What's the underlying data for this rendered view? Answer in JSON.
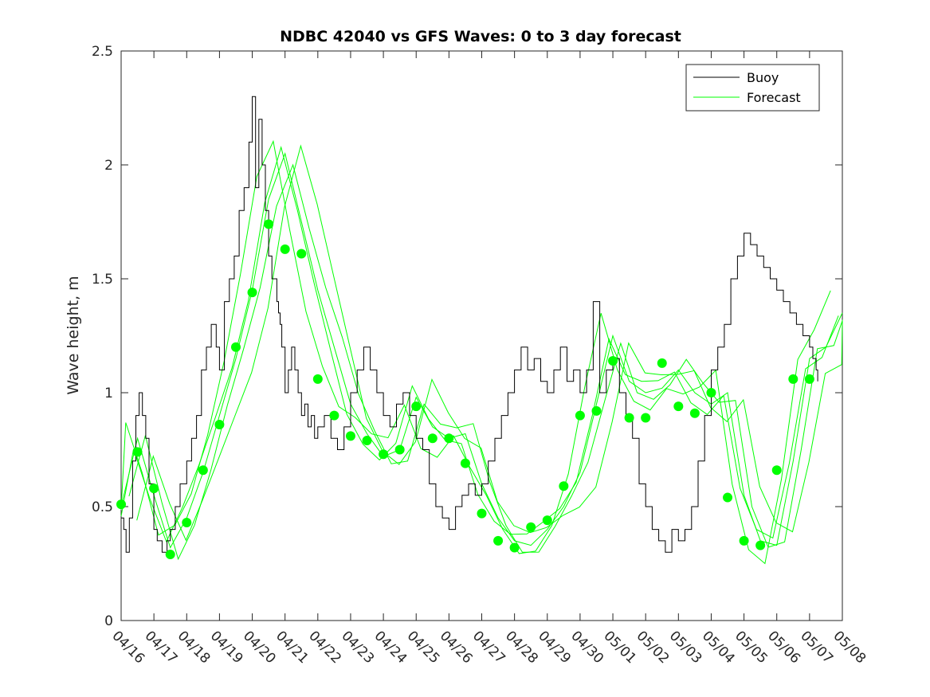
{
  "chart_data": {
    "type": "line",
    "title": "NDBC 42040 vs GFS Waves: 0 to 3 day forecast",
    "xlabel": "",
    "ylabel": "Wave height, m",
    "x_tick_labels": [
      "04/16",
      "04/17",
      "04/18",
      "04/19",
      "04/20",
      "04/21",
      "04/22",
      "04/23",
      "04/24",
      "04/25",
      "04/26",
      "04/27",
      "04/28",
      "04/29",
      "04/30",
      "05/01",
      "05/02",
      "05/03",
      "05/04",
      "05/05",
      "05/06",
      "05/07",
      "05/08"
    ],
    "y_tick_labels": [
      "0",
      "0.5",
      "1",
      "1.5",
      "2",
      "2.5"
    ],
    "xlim_days": [
      0,
      22
    ],
    "ylim": [
      0,
      2.5
    ],
    "grid": false,
    "legend_position": "top-right",
    "colors": {
      "buoy": "#000000",
      "forecast": "#00ff00",
      "axes": "#262626"
    },
    "series": [
      {
        "name": "Buoy",
        "x_days": [
          0,
          0.08,
          0.15,
          0.25,
          0.35,
          0.45,
          0.55,
          0.65,
          0.75,
          0.85,
          1.0,
          1.1,
          1.25,
          1.4,
          1.5,
          1.65,
          1.8,
          2.0,
          2.15,
          2.3,
          2.45,
          2.6,
          2.75,
          2.9,
          3.0,
          3.15,
          3.3,
          3.45,
          3.6,
          3.75,
          3.9,
          4.0,
          4.1,
          4.2,
          4.3,
          4.4,
          4.5,
          4.6,
          4.7,
          4.75,
          4.8,
          4.85,
          4.9,
          5.0,
          5.1,
          5.2,
          5.3,
          5.4,
          5.5,
          5.6,
          5.7,
          5.8,
          5.9,
          6.0,
          6.2,
          6.4,
          6.6,
          6.8,
          7.0,
          7.2,
          7.4,
          7.6,
          7.8,
          8.0,
          8.2,
          8.4,
          8.6,
          8.8,
          9.0,
          9.2,
          9.4,
          9.6,
          9.8,
          10.0,
          10.2,
          10.4,
          10.6,
          10.8,
          11.0,
          11.2,
          11.4,
          11.6,
          11.8,
          12.0,
          12.2,
          12.4,
          12.6,
          12.8,
          13.0,
          13.2,
          13.4,
          13.6,
          13.8,
          14.0,
          14.2,
          14.4,
          14.6,
          14.8,
          15.0,
          15.2,
          15.4,
          15.6,
          15.8,
          16.0,
          16.2,
          16.4,
          16.6,
          16.8,
          17.0,
          17.2,
          17.4,
          17.6,
          17.8,
          18.0,
          18.2,
          18.4,
          18.6,
          18.8,
          19.0,
          19.2,
          19.4,
          19.6,
          19.8,
          20.0,
          20.2,
          20.4,
          20.6,
          20.8,
          21.0,
          21.1,
          21.2,
          21.25
        ],
        "values": [
          0.45,
          0.4,
          0.3,
          0.45,
          0.7,
          0.9,
          1.0,
          0.9,
          0.8,
          0.6,
          0.4,
          0.35,
          0.3,
          0.35,
          0.4,
          0.5,
          0.6,
          0.7,
          0.8,
          0.9,
          1.1,
          1.2,
          1.3,
          1.2,
          1.1,
          1.4,
          1.5,
          1.6,
          1.8,
          1.9,
          2.1,
          2.3,
          1.9,
          2.2,
          2.0,
          1.8,
          1.6,
          1.5,
          1.5,
          1.4,
          1.35,
          1.3,
          1.2,
          1.0,
          1.1,
          1.2,
          1.1,
          1.0,
          0.9,
          0.95,
          0.85,
          0.9,
          0.8,
          0.85,
          0.9,
          0.8,
          0.75,
          0.85,
          1.0,
          1.1,
          1.2,
          1.1,
          1.0,
          0.9,
          0.85,
          0.95,
          1.0,
          0.9,
          0.8,
          0.75,
          0.6,
          0.5,
          0.45,
          0.4,
          0.5,
          0.55,
          0.6,
          0.55,
          0.6,
          0.7,
          0.8,
          0.9,
          1.0,
          1.1,
          1.2,
          1.1,
          1.15,
          1.05,
          1.0,
          1.1,
          1.2,
          1.05,
          1.1,
          1.0,
          1.1,
          1.4,
          1.0,
          1.1,
          1.15,
          1.0,
          0.9,
          0.8,
          0.6,
          0.5,
          0.4,
          0.35,
          0.3,
          0.4,
          0.35,
          0.4,
          0.5,
          0.7,
          0.9,
          1.1,
          1.2,
          1.3,
          1.5,
          1.6,
          1.7,
          1.65,
          1.6,
          1.55,
          1.5,
          1.45,
          1.4,
          1.35,
          1.3,
          1.25,
          1.2,
          1.15,
          1.1,
          1.05
        ],
        "x_days_trimmed": [],
        "note_unused": ""
      },
      {
        "name": "Forecast",
        "x_days": [
          0,
          0.5,
          1.0,
          1.5,
          2.0,
          2.5,
          3.0,
          3.5,
          4.0,
          4.5,
          5.0,
          5.5,
          6.0,
          6.5,
          7.0,
          7.5,
          8.0,
          8.5,
          9.0,
          9.5,
          10.0,
          10.5,
          11.0,
          11.5,
          12.0,
          12.5,
          13.0,
          13.5,
          14.0,
          14.5,
          15.0,
          15.5,
          16.0,
          16.5,
          17.0,
          17.5,
          18.0,
          18.5,
          19.0,
          19.5,
          20.0,
          20.5,
          21.0,
          21.5,
          22.0
        ],
        "values": [
          0.5,
          0.8,
          0.55,
          0.32,
          0.45,
          0.65,
          0.9,
          1.15,
          1.45,
          1.85,
          2.05,
          1.75,
          1.45,
          1.2,
          0.95,
          0.82,
          0.72,
          0.75,
          0.98,
          0.85,
          0.8,
          0.82,
          0.6,
          0.45,
          0.35,
          0.33,
          0.4,
          0.5,
          0.65,
          0.95,
          1.25,
          1.05,
          1.0,
          1.02,
          1.1,
          1.0,
          0.95,
          1.0,
          0.55,
          0.35,
          0.33,
          0.7,
          1.15,
          1.2,
          1.35
        ]
      }
    ],
    "forecast_ensemble_offsets": [
      0,
      -0.05,
      0.05,
      -0.1,
      0.08
    ],
    "markers": {
      "x_days": [
        0,
        0.5,
        1.0,
        1.5,
        2.0,
        2.5,
        3.0,
        3.5,
        4.0,
        4.5,
        5.0,
        5.5,
        6.0,
        6.5,
        7.0,
        7.5,
        8.0,
        8.5,
        9.0,
        9.5,
        10.0,
        10.5,
        11.0,
        11.5,
        12.0,
        12.5,
        13.0,
        13.5,
        14.0,
        14.5,
        15.0,
        15.5,
        16.0,
        16.5,
        17.0,
        17.5,
        18.0,
        18.5,
        19.0,
        19.5,
        20.0,
        20.5,
        21.0
      ],
      "values": [
        0.51,
        0.74,
        0.58,
        0.29,
        0.43,
        0.66,
        0.86,
        1.2,
        1.44,
        1.74,
        1.63,
        1.61,
        1.06,
        0.9,
        0.81,
        0.79,
        0.73,
        0.75,
        0.94,
        0.8,
        0.8,
        0.69,
        0.47,
        0.35,
        0.32,
        0.41,
        0.44,
        0.59,
        0.9,
        0.92,
        1.14,
        0.89,
        0.89,
        1.13,
        0.94,
        0.91,
        1.0,
        0.54,
        0.35,
        0.33,
        0.66,
        1.06,
        1.06
      ]
    },
    "legend": [
      "Buoy",
      "Forecast"
    ]
  }
}
